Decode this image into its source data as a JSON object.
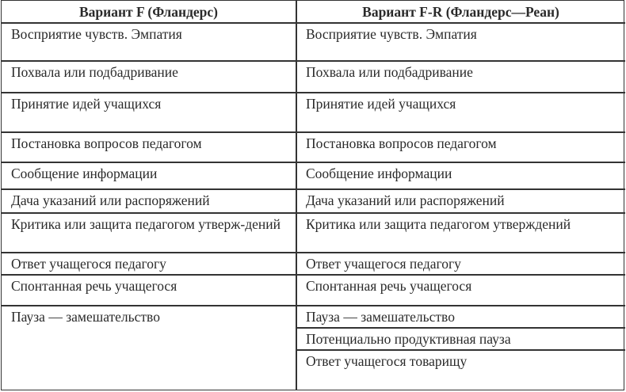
{
  "table": {
    "headers": [
      "Вариант F (Фландерс)",
      "Вариант F-R (Фландерс—Реан)"
    ],
    "rows": [
      [
        "Восприятие чувств. Эмпатия",
        "Восприятие чувств. Эмпатия"
      ],
      [
        "Похвала или подбадривание",
        "Похвала или подбадривание"
      ],
      [
        "Принятие идей учащихся",
        "Принятие идей учащихся"
      ],
      [
        "Постановка вопросов педагогом",
        "Постановка вопросов педагогом"
      ],
      [
        "Сообщение информации",
        "Сообщение информации"
      ],
      [
        "Дача указаний или распоряжений",
        "Дача указаний или распоряжений"
      ],
      [
        "Критика или защита педагогом утверж-дений",
        "Критика или защита педагогом утверждений"
      ],
      [
        "Ответ учащегося педагогу",
        "Ответ учащегося педагогу"
      ],
      [
        "Спонтанная речь учащегося",
        "Спонтанная речь учащегося"
      ],
      [
        "Пауза — замешательство",
        "Пауза — замешательство"
      ]
    ],
    "extra_right": [
      "Потенциально продуктивная пауза",
      "Ответ учащегося товарищу"
    ]
  }
}
